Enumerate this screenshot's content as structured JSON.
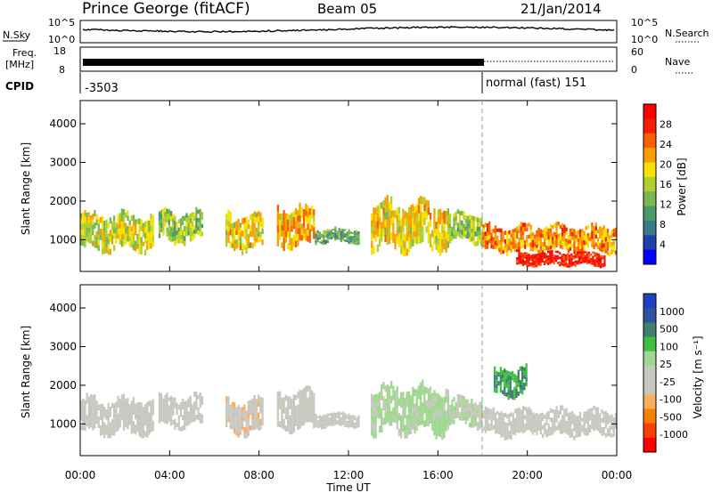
{
  "header": {
    "station": "Prince George (fitACF)",
    "beam": "Beam 05",
    "date": "21/Jan/2014"
  },
  "noise_panel": {
    "left_label": "N.Sky",
    "left_ticks": [
      "10^5",
      "10^0"
    ],
    "right_ticks": [
      "10^5",
      "10^0"
    ],
    "right_label": "N.Search"
  },
  "freq_panel": {
    "left_label_1": "Freq.",
    "left_label_2": "[MHz]",
    "left_ticks": [
      "18",
      "8"
    ],
    "right_ticks": [
      "60",
      "0"
    ],
    "right_label": "Nave"
  },
  "cpid_panel": {
    "label": "CPID",
    "segment_1": "-3503",
    "segment_2": "normal (fast) 151"
  },
  "x_axis": {
    "label": "Time UT",
    "ticks": [
      "00:00",
      "04:00",
      "08:00",
      "12:00",
      "16:00",
      "20:00",
      "00:00"
    ]
  },
  "power_panel": {
    "ylabel": "Slant Range [km]",
    "yticks": [
      "1000",
      "2000",
      "3000",
      "4000"
    ],
    "colorbar_label": "Power [dB]",
    "colorbar_ticks": [
      "4",
      "8",
      "12",
      "16",
      "20",
      "24",
      "28"
    ]
  },
  "velocity_panel": {
    "ylabel": "Slant Range [km]",
    "yticks": [
      "1000",
      "2000",
      "3000",
      "4000"
    ],
    "colorbar_label": "Velocity [m s⁻¹]",
    "colorbar_ticks": [
      "1000",
      "500",
      "100",
      "25",
      "-25",
      "-100",
      "-500",
      "-1000"
    ]
  },
  "chart_data": [
    {
      "type": "heatmap",
      "title": "Power",
      "xlabel": "Time UT",
      "ylabel": "Slant Range [km]",
      "xlim": [
        "00:00",
        "24:00"
      ],
      "ylim": [
        180,
        4600
      ],
      "colorbar": {
        "label": "Power [dB]",
        "range": [
          0,
          30
        ],
        "colors": [
          "#0000ff",
          "#2040b0",
          "#3a7a8a",
          "#4a9a6a",
          "#78b850",
          "#b0d030",
          "#f8e000",
          "#f8a000",
          "#f86000",
          "#f02000",
          "#ff0000"
        ]
      },
      "echo_regions": [
        {
          "t0": 0.0,
          "t1": 3.3,
          "r0": 700,
          "r1": 1700,
          "power": 16
        },
        {
          "t0": 3.5,
          "t1": 5.5,
          "r0": 900,
          "r1": 1750,
          "power": 14
        },
        {
          "t0": 6.5,
          "t1": 8.2,
          "r0": 700,
          "r1": 1700,
          "power": 18
        },
        {
          "t0": 8.8,
          "t1": 10.5,
          "r0": 800,
          "r1": 1900,
          "power": 20
        },
        {
          "t0": 10.5,
          "t1": 12.5,
          "r0": 900,
          "r1": 1300,
          "power": 10
        },
        {
          "t0": 13.0,
          "t1": 16.5,
          "r0": 700,
          "r1": 2000,
          "power": 18
        },
        {
          "t0": 16.5,
          "t1": 18.0,
          "r0": 900,
          "r1": 1700,
          "power": 14
        },
        {
          "t0": 18.0,
          "t1": 24.0,
          "r0": 650,
          "r1": 1400,
          "power": 22
        },
        {
          "t0": 19.5,
          "t1": 23.5,
          "r0": 300,
          "r1": 700,
          "power": 28
        }
      ]
    },
    {
      "type": "heatmap",
      "title": "Velocity",
      "xlabel": "Time UT",
      "ylabel": "Slant Range [km]",
      "xlim": [
        "00:00",
        "24:00"
      ],
      "ylim": [
        180,
        4600
      ],
      "colorbar": {
        "label": "Velocity [m s⁻¹]",
        "range": [
          -1000,
          1000
        ],
        "colors": [
          "#ff0000",
          "#f84000",
          "#f88000",
          "#f8b060",
          "#c8c8c0",
          "#c8c8c0",
          "#a0d890",
          "#40c040",
          "#408070",
          "#3050a0",
          "#2040c0"
        ]
      },
      "echo_regions": [
        {
          "t0": 0.0,
          "t1": 3.3,
          "r0": 700,
          "r1": 1700,
          "velocity": 0
        },
        {
          "t0": 3.5,
          "t1": 5.5,
          "r0": 900,
          "r1": 1750,
          "velocity": -150
        },
        {
          "t0": 6.5,
          "t1": 8.2,
          "r0": 700,
          "r1": 1700,
          "velocity": -250
        },
        {
          "t0": 8.8,
          "t1": 10.5,
          "r0": 800,
          "r1": 1900,
          "velocity": -200
        },
        {
          "t0": 10.5,
          "t1": 12.5,
          "r0": 900,
          "r1": 1300,
          "velocity": 0
        },
        {
          "t0": 13.0,
          "t1": 16.5,
          "r0": 700,
          "r1": 2000,
          "velocity": 150
        },
        {
          "t0": 16.5,
          "t1": 18.0,
          "r0": 900,
          "r1": 1700,
          "velocity": 100
        },
        {
          "t0": 18.0,
          "t1": 24.0,
          "r0": 650,
          "r1": 1400,
          "velocity": 0
        },
        {
          "t0": 18.5,
          "t1": 20.0,
          "r0": 1700,
          "r1": 2500,
          "velocity": 500
        }
      ]
    }
  ]
}
